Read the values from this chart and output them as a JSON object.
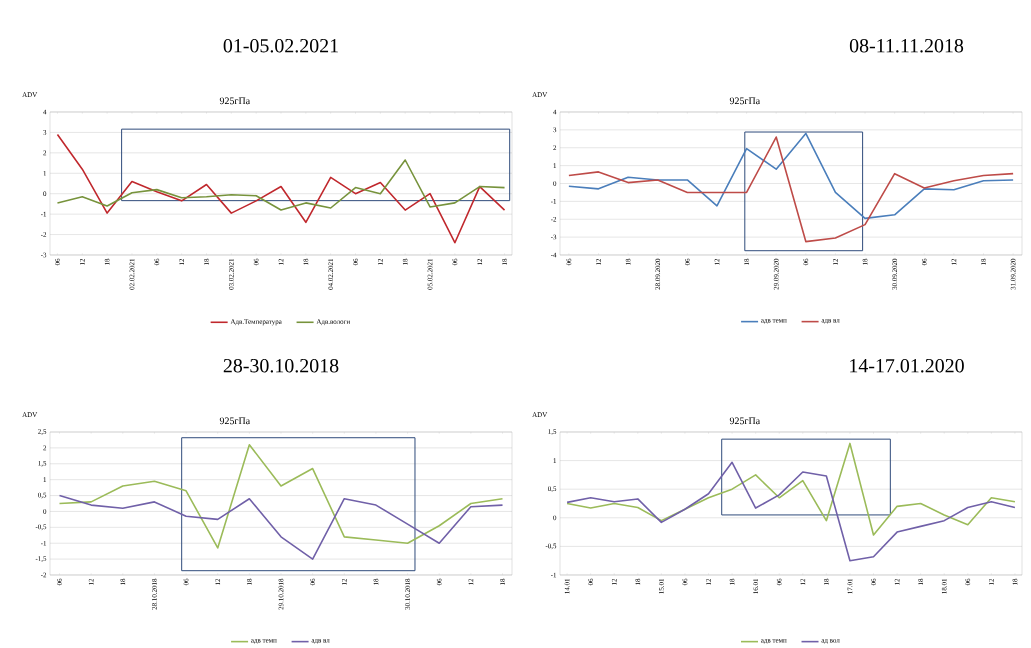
{
  "chart_data": [
    {
      "type": "line",
      "title": "01-05.02.2021",
      "subtitle": "925гПа",
      "ylabel": "ADV",
      "categories": [
        "06",
        "12",
        "18",
        "02.02.2021",
        "06",
        "12",
        "18",
        "03.02.2021",
        "06",
        "12",
        "18",
        "04.02.2021",
        "06",
        "12",
        "18",
        "05.02.2021",
        "06",
        "12",
        "18"
      ],
      "series": [
        {
          "name": "Адв.Температура",
          "color": "#c0282d",
          "values": [
            2.9,
            1.2,
            -0.95,
            0.6,
            0.1,
            -0.35,
            0.45,
            -0.95,
            -0.35,
            0.35,
            -1.4,
            0.8,
            0.0,
            0.55,
            -0.8,
            0.0,
            -2.4,
            0.35,
            -0.8
          ]
        },
        {
          "name": "Адв.вологи",
          "color": "#77933c",
          "values": [
            -0.45,
            -0.15,
            -0.6,
            0.05,
            0.2,
            -0.2,
            -0.15,
            -0.05,
            -0.1,
            -0.8,
            -0.45,
            -0.7,
            0.3,
            0.0,
            1.65,
            -0.65,
            -0.45,
            0.35,
            0.3
          ]
        }
      ],
      "ylim": [
        -3,
        4
      ],
      "yticks": [
        -3,
        -2,
        -1,
        0,
        1,
        2,
        3,
        4
      ],
      "grid": "y",
      "legend": "bottom"
    },
    {
      "type": "line",
      "title": "08-11.11.2018",
      "subtitle": "925гПа",
      "ylabel": "ADV",
      "categories": [
        "06",
        "12",
        "18",
        "28.09.2020",
        "06",
        "12",
        "18",
        "29.09.2020",
        "06",
        "12",
        "18",
        "30.09.2020",
        "06",
        "12",
        "18",
        "31.09.2020"
      ],
      "series": [
        {
          "name": "адв темп",
          "color": "#4a7ebb",
          "values": [
            -0.15,
            -0.3,
            0.35,
            0.2,
            0.2,
            -1.25,
            1.95,
            0.8,
            2.8,
            -0.5,
            -1.95,
            -1.75,
            -0.3,
            -0.35,
            0.15,
            0.2
          ]
        },
        {
          "name": "адв вл",
          "color": "#be4b48",
          "values": [
            0.45,
            0.65,
            0.05,
            0.2,
            -0.5,
            -0.5,
            -0.5,
            2.6,
            -3.25,
            -3.05,
            -2.3,
            0.55,
            -0.25,
            0.15,
            0.45,
            0.55
          ]
        }
      ],
      "ylim": [
        -4,
        4
      ],
      "yticks": [
        -4,
        -3,
        -2,
        -1,
        0,
        1,
        2,
        3,
        4
      ],
      "grid": "y",
      "legend": "bottom"
    },
    {
      "type": "line",
      "title": "28-30.10.2018",
      "subtitle": "925гПа",
      "ylabel": "ADV",
      "categories": [
        "06",
        "12",
        "18",
        "28.10.2018",
        "06",
        "12",
        "18",
        "29.10.2018",
        "06",
        "12",
        "18",
        "30.10.2018",
        "06",
        "12",
        "18"
      ],
      "series": [
        {
          "name": "адв темп",
          "color": "#9bbb59",
          "values": [
            0.25,
            0.3,
            0.8,
            0.95,
            0.65,
            -1.15,
            2.1,
            0.8,
            1.35,
            -0.8,
            -0.9,
            -1.0,
            -0.45,
            0.25,
            0.4
          ]
        },
        {
          "name": "адв вл",
          "color": "#7060a8",
          "values": [
            0.5,
            0.2,
            0.1,
            0.3,
            -0.15,
            -0.25,
            0.4,
            -0.8,
            -1.5,
            0.4,
            0.2,
            -0.4,
            -1.0,
            0.15,
            0.2
          ]
        }
      ],
      "ylim": [
        -2,
        2.5
      ],
      "yticks": [
        {
          "value": -2,
          "label": "-2"
        },
        {
          "value": -1.5,
          "label": "-1,5"
        },
        {
          "value": -1,
          "label": "-1"
        },
        {
          "value": -0.5,
          "label": "-0,5"
        },
        {
          "value": 0,
          "label": "0"
        },
        {
          "value": 0.5,
          "label": "0,5"
        },
        {
          "value": 1,
          "label": "1"
        },
        {
          "value": 1.5,
          "label": "1,5"
        },
        {
          "value": 2,
          "label": "2"
        },
        {
          "value": 2.5,
          "label": "2,5"
        }
      ],
      "grid": "y",
      "legend": "bottom"
    },
    {
      "type": "line",
      "title": "14-17.01.2020",
      "subtitle": "925гПа",
      "ylabel": "ADV",
      "categories": [
        "14.01",
        "06",
        "12",
        "18",
        "15.01",
        "06",
        "12",
        "18",
        "16.01",
        "06",
        "12",
        "18",
        "17.01",
        "06",
        "12",
        "18",
        "18.01",
        "06",
        "12",
        "18"
      ],
      "series": [
        {
          "name": "адв темп",
          "color": "#9bbb59",
          "values": [
            0.25,
            0.17,
            0.25,
            0.18,
            -0.05,
            0.15,
            0.35,
            0.5,
            0.75,
            0.35,
            0.65,
            -0.05,
            1.3,
            -0.3,
            0.2,
            0.25,
            0.05,
            -0.12,
            0.35,
            0.28
          ]
        },
        {
          "name": "ад вол",
          "color": "#7060a8",
          "values": [
            0.27,
            0.35,
            0.28,
            0.33,
            -0.08,
            0.15,
            0.42,
            0.97,
            0.17,
            0.4,
            0.8,
            0.73,
            -0.75,
            -0.68,
            -0.25,
            -0.15,
            -0.05,
            0.18,
            0.28,
            0.18
          ]
        }
      ],
      "ylim": [
        -1,
        1.5
      ],
      "yticks": [
        {
          "value": -1,
          "label": "-1"
        },
        {
          "value": -0.5,
          "label": "-0,5"
        },
        {
          "value": 0,
          "label": "0"
        },
        {
          "value": 0.5,
          "label": "0,5"
        },
        {
          "value": 1,
          "label": "1"
        },
        {
          "value": 1.5,
          "label": "1,5"
        }
      ],
      "grid": "y",
      "legend": "bottom"
    }
  ]
}
